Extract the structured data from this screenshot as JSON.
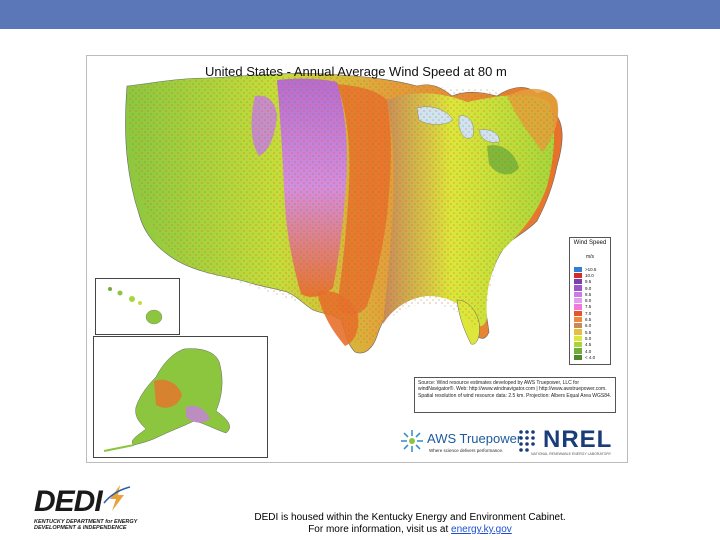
{
  "map": {
    "title": "United States - Annual Average Wind Speed at 80 m",
    "legend": {
      "title": "Wind Speed",
      "unit": "m/s",
      "entries": [
        {
          "label": ">10.5",
          "color": "#2e7fd8"
        },
        {
          "label": "10.0",
          "color": "#d72b2b"
        },
        {
          "label": "9.5",
          "color": "#7a3fb0"
        },
        {
          "label": "9.0",
          "color": "#9c55cc"
        },
        {
          "label": "8.5",
          "color": "#c77fe0"
        },
        {
          "label": "8.0",
          "color": "#e39cf0"
        },
        {
          "label": "7.5",
          "color": "#f07ad8"
        },
        {
          "label": "7.0",
          "color": "#e8552b"
        },
        {
          "label": "6.5",
          "color": "#f08a3a"
        },
        {
          "label": "6.0",
          "color": "#c9895a"
        },
        {
          "label": "5.5",
          "color": "#e3c23a"
        },
        {
          "label": "5.0",
          "color": "#dde63a"
        },
        {
          "label": "4.5",
          "color": "#a6d63a"
        },
        {
          "label": "4.0",
          "color": "#6fae3a"
        },
        {
          "label": "< 4.0",
          "color": "#4f8a2e"
        }
      ]
    },
    "source_text": "Source: Wind resource estimates developed by AWS Truepower, LLC for windNavigator®. Web: http://www.windnavigator.com | http://www.awstruepower.com. Spatial resolution of wind resource data: 2.5 km. Projection: Albers Equal Area WGS84.",
    "aws_logo": {
      "name": "AWS Truepower",
      "tagline": "Where science delivers performance."
    },
    "nrel_logo": {
      "name": "NREL",
      "subtitle": "NATIONAL RENEWABLE ENERGY LABORATORY"
    }
  },
  "dedi_logo": {
    "name": "DEDI",
    "subtitle": "KENTUCKY DEPARTMENT for ENERGY DEVELOPMENT & INDEPENDENCE"
  },
  "footer": {
    "line1": "DEDI is housed within the Kentucky Energy and Environment Cabinet.",
    "line2_prefix": "For more information, visit us at",
    "link": "energy.ky.gov"
  },
  "colors": {
    "top_bar": "#5b77b8",
    "link": "#1f4fd1"
  }
}
